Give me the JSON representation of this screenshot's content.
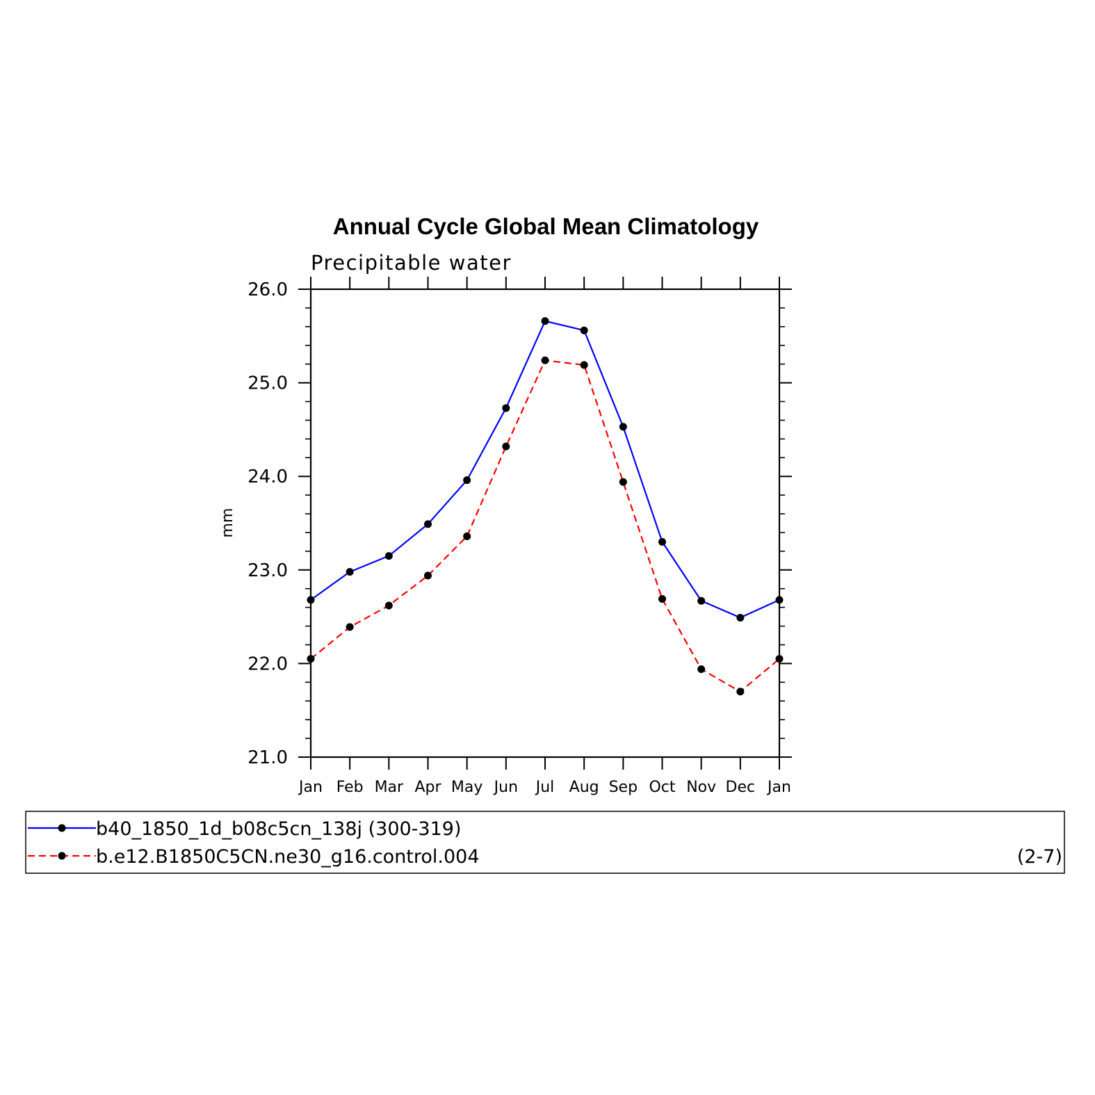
{
  "chart_data": {
    "type": "line",
    "title": "Annual Cycle Global Mean Climatology",
    "subtitle": "Precipitable water",
    "ylabel": "mm",
    "xlabel": "",
    "categories": [
      "Jan",
      "Feb",
      "Mar",
      "Apr",
      "May",
      "Jun",
      "Jul",
      "Aug",
      "Sep",
      "Oct",
      "Nov",
      "Dec",
      "Jan"
    ],
    "ylim": [
      21.0,
      26.0
    ],
    "yticks": [
      "21.0",
      "22.0",
      "23.0",
      "24.0",
      "25.0",
      "26.0"
    ],
    "grid": false,
    "legend_placement": "bottom",
    "series": [
      {
        "name": "b40_1850_1d_b08c5cn_138j (300-319)",
        "color": "#0000ff",
        "dash": "solid",
        "values": [
          22.68,
          22.98,
          23.15,
          23.49,
          23.96,
          24.73,
          25.66,
          25.56,
          24.53,
          23.3,
          22.67,
          22.49,
          22.68
        ]
      },
      {
        "name": "b.e12.B1850C5CN.ne30_g16.control.004",
        "color": "#ff0000",
        "dash": "dashed",
        "values": [
          22.05,
          22.39,
          22.62,
          22.94,
          23.36,
          24.32,
          25.24,
          25.19,
          23.94,
          22.69,
          21.94,
          21.7,
          22.05
        ]
      }
    ],
    "legend_note": "(2-7)"
  }
}
